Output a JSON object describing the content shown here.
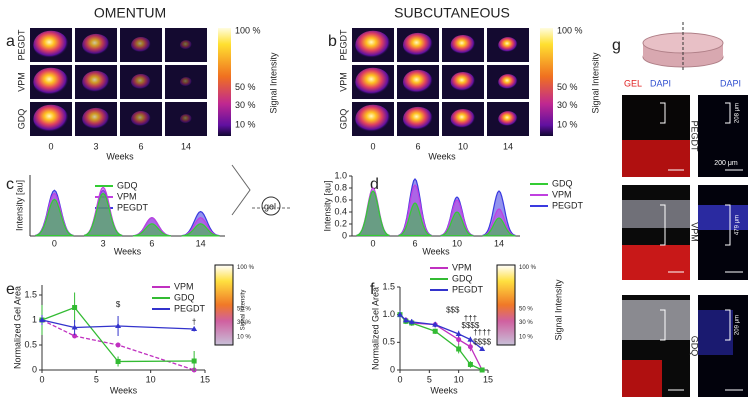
{
  "panels": {
    "a": {
      "letter": "a",
      "title": "OMENTUM",
      "rows": [
        "PEGDT",
        "VPM",
        "GDQ"
      ],
      "columns": [
        "0",
        "3",
        "6",
        "14"
      ],
      "xlabel": "Weeks",
      "colorbar": [
        "100 %",
        "50 %",
        "30 %",
        "10 %"
      ],
      "colorbar_label": "Signal Intensity"
    },
    "b": {
      "letter": "b",
      "title": "SUBCUTANEOUS",
      "rows": [
        "PEGDT",
        "VPM",
        "GDQ"
      ],
      "columns": [
        "0",
        "6",
        "10",
        "14"
      ],
      "xlabel": "Weeks",
      "colorbar": [
        "100 %",
        "50 %",
        "30 %",
        "10 %"
      ],
      "colorbar_label": "Signal Intensity"
    },
    "g": {
      "letter": "g",
      "gel": "GEL",
      "dapi": "DAPI",
      "dapi2": "DAPI",
      "rows": [
        "PEGDT",
        "VPM",
        "GDQ"
      ],
      "depths": [
        "208 μm",
        "479 μm",
        "209 μm"
      ],
      "scale": "200 μm"
    }
  },
  "chart_data": [
    {
      "type": "profile",
      "letter": "c",
      "ylabel": "Intensity [au]",
      "xlabel": "Weeks",
      "categories": [
        "0",
        "3",
        "6",
        "14"
      ],
      "ylim": [
        0,
        1
      ],
      "diagram_label": "gel",
      "series": [
        {
          "name": "GDQ",
          "color": "#33cc33",
          "values": [
            0.6,
            0.7,
            0.2,
            0.2
          ]
        },
        {
          "name": "VPM",
          "color": "#c040e0",
          "values": [
            0.7,
            0.8,
            0.3,
            0.3
          ]
        },
        {
          "name": "PEGDT",
          "color": "#3a3ae0",
          "values": [
            0.75,
            0.75,
            0.3,
            0.4
          ]
        }
      ]
    },
    {
      "type": "profile",
      "letter": "d",
      "ylabel": "Intensity [au]",
      "xlabel": "Weeks",
      "categories": [
        "0",
        "6",
        "10",
        "14"
      ],
      "ylim": [
        0,
        1
      ],
      "yticks": [
        0,
        0.2,
        0.4,
        0.6,
        0.8,
        {
          "value": 1,
          "label": "1.0"
        }
      ],
      "series": [
        {
          "name": "GDQ",
          "color": "#33cc33",
          "values": [
            0.75,
            0.55,
            0.4,
            0.3
          ]
        },
        {
          "name": "VPM",
          "color": "#c040e0",
          "values": [
            0.8,
            0.85,
            0.6,
            0.45
          ]
        },
        {
          "name": "PEGDT",
          "color": "#3a3ae0",
          "values": [
            0.75,
            0.95,
            0.65,
            0.75
          ]
        }
      ]
    },
    {
      "type": "line",
      "letter": "e",
      "ylabel": "Normalized Gel Area",
      "xlabel": "Weeks",
      "xlim": [
        0,
        15
      ],
      "xticks": [
        0,
        5,
        10,
        15
      ],
      "ylim": [
        0,
        1.7
      ],
      "yticks": [
        0,
        0.5,
        1,
        1.5
      ],
      "x": [
        0,
        3,
        7,
        14
      ],
      "series": [
        {
          "name": "VPM",
          "color": "#c030c0",
          "marker": "circle",
          "dash": true,
          "values": [
            1,
            0.68,
            0.5,
            0
          ],
          "errors": [
            0.05,
            0.04,
            0.05,
            0.02
          ]
        },
        {
          "name": "GDQ",
          "color": "#33bb33",
          "marker": "square",
          "values": [
            1,
            1.25,
            0.17,
            0.18
          ],
          "errors": [
            0.3,
            0.3,
            0.1,
            0.2
          ]
        },
        {
          "name": "PEGDT",
          "color": "#3333cc",
          "marker": "triangle",
          "values": [
            1,
            0.85,
            0.88,
            0.82
          ],
          "errors": [
            0.1,
            0.15,
            0.2,
            0.05
          ]
        }
      ],
      "annotations": [
        {
          "text": "$",
          "x": 7,
          "y": 1.3
        },
        {
          "text": "†",
          "x": 14,
          "y": 0.95
        }
      ],
      "colorbar": [
        "100 %",
        "50 %",
        "30 %",
        "10 %"
      ],
      "colorbar_label": "Signal Intensity"
    },
    {
      "type": "line",
      "letter": "f",
      "ylabel": "Normalized Gel Area",
      "xlabel": "Weeks",
      "xlim": [
        0,
        15
      ],
      "xticks": [
        0,
        5,
        10,
        15
      ],
      "ylim": [
        0,
        1.5
      ],
      "yticks": [
        0,
        0.5,
        {
          "value": 1,
          "label": "1.0"
        },
        1.5
      ],
      "x": [
        0,
        1,
        2,
        6,
        10,
        12,
        14
      ],
      "series": [
        {
          "name": "VPM",
          "color": "#c030c0",
          "marker": "circle",
          "values": [
            1,
            0.9,
            0.85,
            0.82,
            0.55,
            0.42,
            0
          ],
          "errors": [
            0.07,
            0.05,
            0.05,
            0.05,
            0.1,
            0.08,
            0.03
          ]
        },
        {
          "name": "GDQ",
          "color": "#33bb33",
          "marker": "square",
          "values": [
            1,
            0.88,
            0.85,
            0.7,
            0.38,
            0.1,
            0
          ],
          "errors": [
            0.07,
            0.05,
            0.05,
            0.05,
            0.08,
            0.06,
            0.02
          ]
        },
        {
          "name": "PEGDT",
          "color": "#3333cc",
          "marker": "triangle",
          "values": [
            1,
            0.9,
            0.87,
            0.82,
            0.65,
            0.55,
            0.38
          ],
          "errors": [
            0.07,
            0.05,
            0.05,
            0.05,
            0.06,
            0.05,
            0.03
          ]
        }
      ],
      "annotations": [
        {
          "text": "$$$",
          "x": 9,
          "y": 1.08
        },
        {
          "text": "†††",
          "x": 12,
          "y": 0.92
        },
        {
          "text": "$$$$",
          "x": 12,
          "y": 0.8
        },
        {
          "text": "††††",
          "x": 14,
          "y": 0.67
        },
        {
          "text": "$$$$",
          "x": 14,
          "y": 0.5
        }
      ],
      "colorbar": [
        "100 %",
        "50 %",
        "30 %",
        "10 %"
      ],
      "colorbar_label": "Signal Intensity"
    }
  ]
}
